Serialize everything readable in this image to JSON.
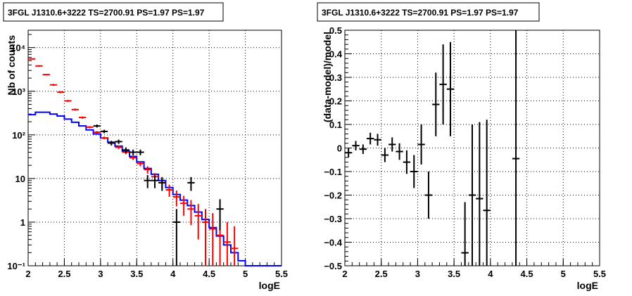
{
  "colors": {
    "data": "#000000",
    "model": "#0000ff",
    "predicted": "#ff0000",
    "grid": "#000000"
  },
  "chart_data": [
    {
      "type": "line",
      "title": "3FGL J1310.6+3222 TS=2700.91 PS=1.97 PS=1.97",
      "xlabel": "logE",
      "ylabel": "Nb of counts",
      "log_y": true,
      "xlim": [
        2,
        5.5
      ],
      "ylim": [
        0.1,
        25000
      ],
      "grid": true,
      "legend": "none",
      "xticks": [
        2,
        2.5,
        3,
        3.5,
        4,
        4.5,
        5,
        5.5
      ],
      "xtick_labels": [
        "2",
        "2.5",
        "3",
        "3.5",
        "4",
        "4.5",
        "5",
        "5.5"
      ],
      "yticks": [
        0.1,
        1,
        10,
        100,
        1000,
        10000
      ],
      "ytick_labels": [
        "10⁻¹",
        "1",
        "10",
        "10²",
        "10³",
        "10⁴"
      ],
      "series": [
        {
          "role": "model",
          "style": "step",
          "edges": [
            2.0,
            2.1,
            2.2,
            2.3,
            2.4,
            2.5,
            2.6,
            2.7,
            2.8,
            2.9,
            3.0,
            3.1,
            3.2,
            3.3,
            3.4,
            3.5,
            3.6,
            3.7,
            3.8,
            3.9,
            4.0,
            4.1,
            4.2,
            4.3,
            4.4,
            4.5,
            4.6,
            4.7,
            4.8,
            4.9,
            5.0,
            5.1,
            5.2,
            5.3,
            5.4,
            5.5
          ],
          "values": [
            290,
            330,
            330,
            300,
            270,
            230,
            195,
            160,
            130,
            105,
            85,
            68,
            55,
            42,
            32,
            24,
            17,
            12.5,
            9,
            6.2,
            4.3,
            3.2,
            2.4,
            1.7,
            1.15,
            0.75,
            0.48,
            0.3,
            0.2,
            0.13,
            0.1,
            0.1,
            0.1,
            0.1,
            0.1
          ]
        },
        {
          "role": "predicted",
          "style": "errorbars",
          "x": [
            2.05,
            2.15,
            2.25,
            2.35,
            2.45,
            2.55,
            2.65,
            2.75,
            2.85,
            2.95,
            3.05,
            3.15,
            3.25,
            3.35,
            3.45,
            3.55,
            3.65,
            3.75,
            3.85,
            3.95,
            4.05,
            4.15,
            4.25,
            4.35,
            4.45,
            4.55,
            4.65,
            4.75,
            4.85
          ],
          "values": [
            5500,
            3800,
            2400,
            1400,
            950,
            600,
            380,
            250,
            150,
            115,
            85,
            65,
            52,
            40,
            30,
            22,
            16,
            11,
            8,
            5.5,
            3.8,
            2.7,
            2,
            1.4,
            1,
            0.7,
            0.5,
            0.35,
            0.25
          ],
          "y_low": [
            5300,
            3650,
            2300,
            1330,
            900,
            570,
            360,
            235,
            142,
            108,
            79,
            60,
            47,
            36,
            26.5,
            19,
            13,
            8.7,
            6,
            3.8,
            2.3,
            1.4,
            0.85,
            0.4,
            0.1,
            0.1,
            0.1,
            0.1,
            0.1
          ],
          "y_high": [
            5700,
            3950,
            2500,
            1470,
            1000,
            630,
            400,
            265,
            158,
            122,
            91,
            70,
            57,
            44,
            33.5,
            25,
            19,
            13.3,
            10,
            7.2,
            5.3,
            4,
            3.2,
            2.6,
            2,
            1.6,
            1.2,
            1,
            0.8
          ]
        },
        {
          "role": "data",
          "style": "errorbars",
          "x": [
            2.95,
            3.05,
            3.15,
            3.25,
            3.35,
            3.45,
            3.55,
            3.65,
            3.75,
            3.85,
            4.05,
            4.25,
            4.65
          ],
          "values": [
            160,
            120,
            65,
            70,
            45,
            40,
            40,
            9,
            9,
            8,
            1,
            8,
            2
          ],
          "y_low": [
            147,
            109,
            57,
            62,
            38.5,
            34,
            34,
            6,
            6,
            5.2,
            0.1,
            5.2,
            0.65
          ],
          "y_high": [
            173,
            131,
            73,
            78,
            51.5,
            46,
            46,
            12,
            12,
            10.8,
            2,
            10.8,
            3.35
          ]
        }
      ]
    },
    {
      "type": "scatter",
      "title": "3FGL J1310.6+3222 TS=2700.91 PS=1.97 PS=1.97",
      "xlabel": "logE",
      "ylabel": "(data-model)/model",
      "xlim": [
        2,
        5.5
      ],
      "ylim": [
        -0.5,
        0.5
      ],
      "grid": true,
      "legend": "none",
      "xticks": [
        2,
        2.5,
        3,
        3.5,
        4,
        4.5,
        5,
        5.5
      ],
      "xtick_labels": [
        "2",
        "2.5",
        "3",
        "3.5",
        "4",
        "4.5",
        "5",
        "5.5"
      ],
      "yticks": [
        -0.5,
        -0.4,
        -0.3,
        -0.2,
        -0.1,
        0,
        0.1,
        0.2,
        0.3,
        0.4,
        0.5
      ],
      "ytick_labels": [
        "−0.5",
        "−0.4",
        "−0.3",
        "−0.2",
        "−0.1",
        "0",
        "0.1",
        "0.2",
        "0.3",
        "0.4",
        "0.5"
      ],
      "series": [
        {
          "role": "residuals",
          "x": [
            2.05,
            2.15,
            2.25,
            2.35,
            2.45,
            2.55,
            2.65,
            2.75,
            2.85,
            2.95,
            3.05,
            3.15,
            3.25,
            3.35,
            3.45,
            3.65,
            3.75,
            3.85,
            3.95,
            4.35
          ],
          "values": [
            -0.02,
            0.01,
            -0.005,
            0.04,
            0.035,
            -0.03,
            0.015,
            -0.015,
            -0.06,
            -0.1,
            0.015,
            -0.2,
            0.185,
            0.27,
            0.25,
            -0.445,
            -0.2,
            -0.215,
            -0.265,
            -0.045
          ],
          "y_low": [
            -0.04,
            -0.01,
            -0.025,
            0.015,
            0.01,
            -0.06,
            -0.015,
            -0.05,
            -0.11,
            -0.17,
            -0.07,
            -0.3,
            0.05,
            0.1,
            0.05,
            -0.5,
            -0.5,
            -0.5,
            -0.5,
            -0.5
          ],
          "y_high": [
            0.0,
            0.03,
            0.015,
            0.065,
            0.06,
            0.0,
            0.045,
            0.02,
            -0.01,
            -0.03,
            0.1,
            -0.1,
            0.32,
            0.44,
            0.45,
            -0.23,
            0.1,
            0.11,
            0.12,
            0.5
          ]
        }
      ]
    }
  ]
}
